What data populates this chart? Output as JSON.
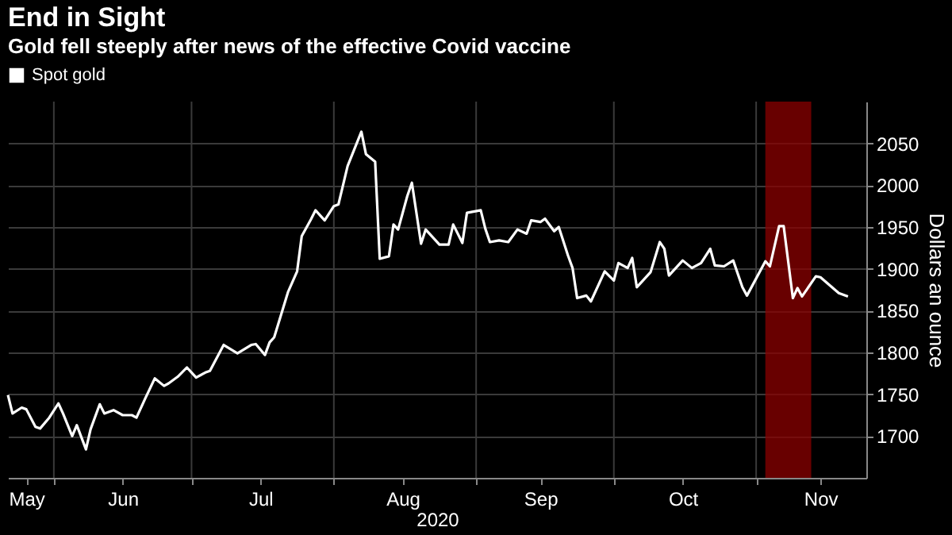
{
  "chart_data": {
    "type": "line",
    "title": "End in Sight",
    "subtitle": "Gold fell steeply after news of the effective Covid vaccine",
    "xlabel": "2020",
    "ylabel": "Dollars an ounce",
    "x": [
      "2020-05-22",
      "2020-05-23",
      "2020-05-25",
      "2020-05-26",
      "2020-05-28",
      "2020-05-29",
      "2020-05-31",
      "2020-06-02",
      "2020-06-03",
      "2020-06-05",
      "2020-06-06",
      "2020-06-08",
      "2020-06-09",
      "2020-06-11",
      "2020-06-12",
      "2020-06-14",
      "2020-06-16",
      "2020-06-18",
      "2020-06-19",
      "2020-06-21",
      "2020-06-23",
      "2020-06-25",
      "2020-06-26",
      "2020-06-28",
      "2020-06-30",
      "2020-07-02",
      "2020-07-04",
      "2020-07-05",
      "2020-07-08",
      "2020-07-11",
      "2020-07-14",
      "2020-07-15",
      "2020-07-17",
      "2020-07-18",
      "2020-07-19",
      "2020-07-22",
      "2020-07-24",
      "2020-07-25",
      "2020-07-27",
      "2020-07-28",
      "2020-07-30",
      "2020-08-01",
      "2020-08-02",
      "2020-08-04",
      "2020-08-07",
      "2020-08-08",
      "2020-08-10",
      "2020-08-11",
      "2020-08-13",
      "2020-08-14",
      "2020-08-15",
      "2020-08-17",
      "2020-08-18",
      "2020-08-20",
      "2020-08-21",
      "2020-08-24",
      "2020-08-26",
      "2020-08-27",
      "2020-08-29",
      "2020-08-30",
      "2020-09-02",
      "2020-09-03",
      "2020-09-04",
      "2020-09-06",
      "2020-09-08",
      "2020-09-10",
      "2020-09-12",
      "2020-09-13",
      "2020-09-15",
      "2020-09-16",
      "2020-09-18",
      "2020-09-19",
      "2020-09-21",
      "2020-09-22",
      "2020-09-23",
      "2020-09-25",
      "2020-09-26",
      "2020-09-29",
      "2020-10-01",
      "2020-10-02",
      "2020-10-04",
      "2020-10-05",
      "2020-10-06",
      "2020-10-09",
      "2020-10-11",
      "2020-10-12",
      "2020-10-13",
      "2020-10-16",
      "2020-10-18",
      "2020-10-20",
      "2020-10-22",
      "2020-10-23",
      "2020-10-25",
      "2020-10-27",
      "2020-10-29",
      "2020-10-30",
      "2020-11-03",
      "2020-11-04",
      "2020-11-06",
      "2020-11-07",
      "2020-11-09",
      "2020-11-10",
      "2020-11-11",
      "2020-11-14",
      "2020-11-15",
      "2020-11-19",
      "2020-11-21"
    ],
    "series": [
      {
        "name": "Spot gold",
        "color": "#ffffff",
        "values": [
          1749,
          1727,
          1734,
          1732,
          1711,
          1709,
          1722,
          1739,
          1727,
          1700,
          1713,
          1684,
          1708,
          1738,
          1727,
          1731,
          1725,
          1725,
          1722,
          1746,
          1769,
          1760,
          1763,
          1771,
          1782,
          1770,
          1776,
          1778,
          1809,
          1799,
          1809,
          1810,
          1797,
          1812,
          1818,
          1872,
          1897,
          1939,
          1959,
          1970,
          1958,
          1975,
          1977,
          2023,
          2064,
          2037,
          2028,
          1912,
          1915,
          1953,
          1947,
          1987,
          2003,
          1930,
          1947,
          1929,
          1929,
          1953,
          1931,
          1967,
          1970,
          1948,
          1932,
          1934,
          1932,
          1947,
          1942,
          1958,
          1956,
          1960,
          1945,
          1950,
          1916,
          1901,
          1865,
          1868,
          1861,
          1897,
          1886,
          1907,
          1901,
          1913,
          1878,
          1896,
          1932,
          1924,
          1892,
          1910,
          1901,
          1907,
          1924,
          1904,
          1903,
          1910,
          1878,
          1868,
          1909,
          1903,
          1951,
          1951,
          1865,
          1877,
          1867,
          1891,
          1890,
          1871,
          1867
        ]
      }
    ],
    "xlim": [
      "2020-05-22",
      "2020-11-25"
    ],
    "xticks": [
      {
        "value": "2020-05-26",
        "label": "May"
      },
      {
        "value": "2020-06-01",
        "label": null
      },
      {
        "value": "2020-06-16",
        "label": "Jun"
      },
      {
        "value": "2020-07-01",
        "label": null
      },
      {
        "value": "2020-07-16",
        "label": "Jul"
      },
      {
        "value": "2020-08-01",
        "label": null
      },
      {
        "value": "2020-08-16",
        "label": "Aug"
      },
      {
        "value": "2020-09-01",
        "label": null
      },
      {
        "value": "2020-09-15",
        "label": "Sep"
      },
      {
        "value": "2020-10-01",
        "label": null
      },
      {
        "value": "2020-10-16",
        "label": "Oct"
      },
      {
        "value": "2020-11-01",
        "label": null
      },
      {
        "value": "2020-11-15",
        "label": "Nov"
      }
    ],
    "ylim": [
      1650,
      2100
    ],
    "yticks": [
      1700,
      1750,
      1800,
      1850,
      1900,
      1950,
      2000,
      2050
    ],
    "bands": [
      {
        "axis": "x",
        "from": "2020-11-03",
        "to": "2020-11-13",
        "color": "#8b0000"
      }
    ],
    "grid": true,
    "legend": "top left"
  }
}
